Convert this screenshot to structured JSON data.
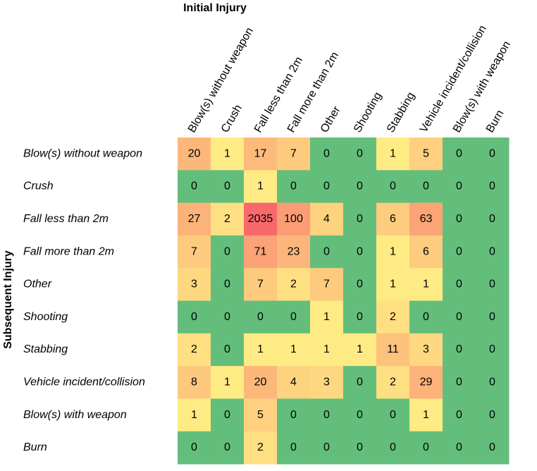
{
  "chart_data": {
    "type": "heatmap",
    "x_label": "Initial Injury",
    "y_label": "Subsequent Injury",
    "x_categories": [
      "Blow(s) without weapon",
      "Crush",
      "Fall less than 2m",
      "Fall more than 2m",
      "Other",
      "Shooting",
      "Stabbing",
      "Vehicle incident/collision",
      "Blow(s) with weapon",
      "Burn"
    ],
    "y_categories": [
      "Blow(s) without weapon",
      "Crush",
      "Fall less than 2m",
      "Fall more than 2m",
      "Other",
      "Shooting",
      "Stabbing",
      "Vehicle incident/collision",
      "Blow(s) with weapon",
      "Burn"
    ],
    "values": [
      [
        20,
        1,
        17,
        7,
        0,
        0,
        1,
        5,
        0,
        0
      ],
      [
        0,
        0,
        1,
        0,
        0,
        0,
        0,
        0,
        0,
        0
      ],
      [
        27,
        2,
        2035,
        100,
        4,
        0,
        6,
        63,
        0,
        0
      ],
      [
        7,
        0,
        71,
        23,
        0,
        0,
        1,
        6,
        0,
        0
      ],
      [
        3,
        0,
        7,
        2,
        7,
        0,
        1,
        1,
        0,
        0
      ],
      [
        0,
        0,
        0,
        0,
        1,
        0,
        2,
        0,
        0,
        0
      ],
      [
        2,
        0,
        1,
        1,
        1,
        1,
        11,
        3,
        0,
        0
      ],
      [
        8,
        1,
        20,
        4,
        3,
        0,
        2,
        29,
        0,
        0
      ],
      [
        1,
        0,
        5,
        0,
        0,
        0,
        0,
        1,
        0,
        0
      ],
      [
        0,
        0,
        2,
        0,
        0,
        0,
        0,
        0,
        0,
        0
      ]
    ],
    "colors": {
      "zero": "#63be7b",
      "low": "#ffeb84",
      "high": "#f8696b"
    }
  }
}
